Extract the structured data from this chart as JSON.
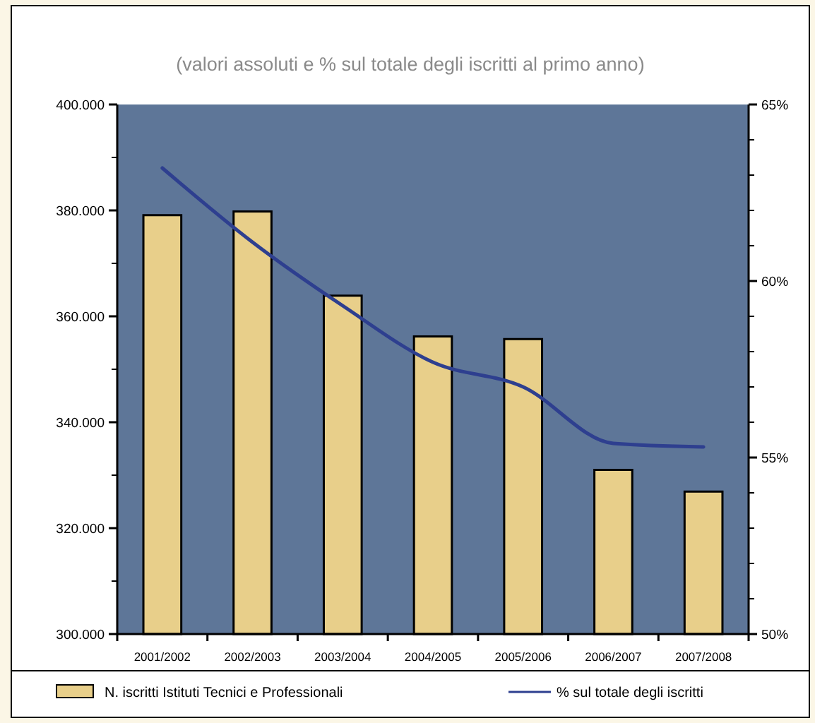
{
  "chart_data": {
    "type": "bar",
    "title": "(valori assoluti e % sul totale degli iscritti al primo anno)",
    "categories": [
      "2001/2002",
      "2002/2003",
      "2003/2004",
      "2004/2005",
      "2005/2006",
      "2006/2007",
      "2007/2008"
    ],
    "series": [
      {
        "name": "N. iscritti Istituti Tecnici e Professionali",
        "color": "#e8cf8a",
        "values": [
          379100,
          379800,
          363900,
          356200,
          355700,
          331000,
          326900
        ]
      },
      {
        "name": "% sul totale degli iscritti",
        "type": "line",
        "axis": "y2",
        "color": "#2e3f8f",
        "values": [
          63.2,
          61.1,
          59.3,
          57.7,
          57.0,
          55.4,
          55.3
        ]
      }
    ],
    "ylim": [
      300000,
      400000
    ],
    "yticks": [
      {
        "value": 300000,
        "label": "300.000"
      },
      {
        "value": 320000,
        "label": "320.000"
      },
      {
        "value": 340000,
        "label": "340.000"
      },
      {
        "value": 360000,
        "label": "360.000"
      },
      {
        "value": 380000,
        "label": "380.000"
      },
      {
        "value": 400000,
        "label": "400.000"
      }
    ],
    "y2lim": [
      50,
      65
    ],
    "y2ticks": [
      {
        "value": 50,
        "label": "50%"
      },
      {
        "value": 55,
        "label": "55%"
      },
      {
        "value": 60,
        "label": "60%"
      },
      {
        "value": 65,
        "label": "65%"
      }
    ],
    "legend": "bottom",
    "marker": "none",
    "line_style": "solid"
  }
}
